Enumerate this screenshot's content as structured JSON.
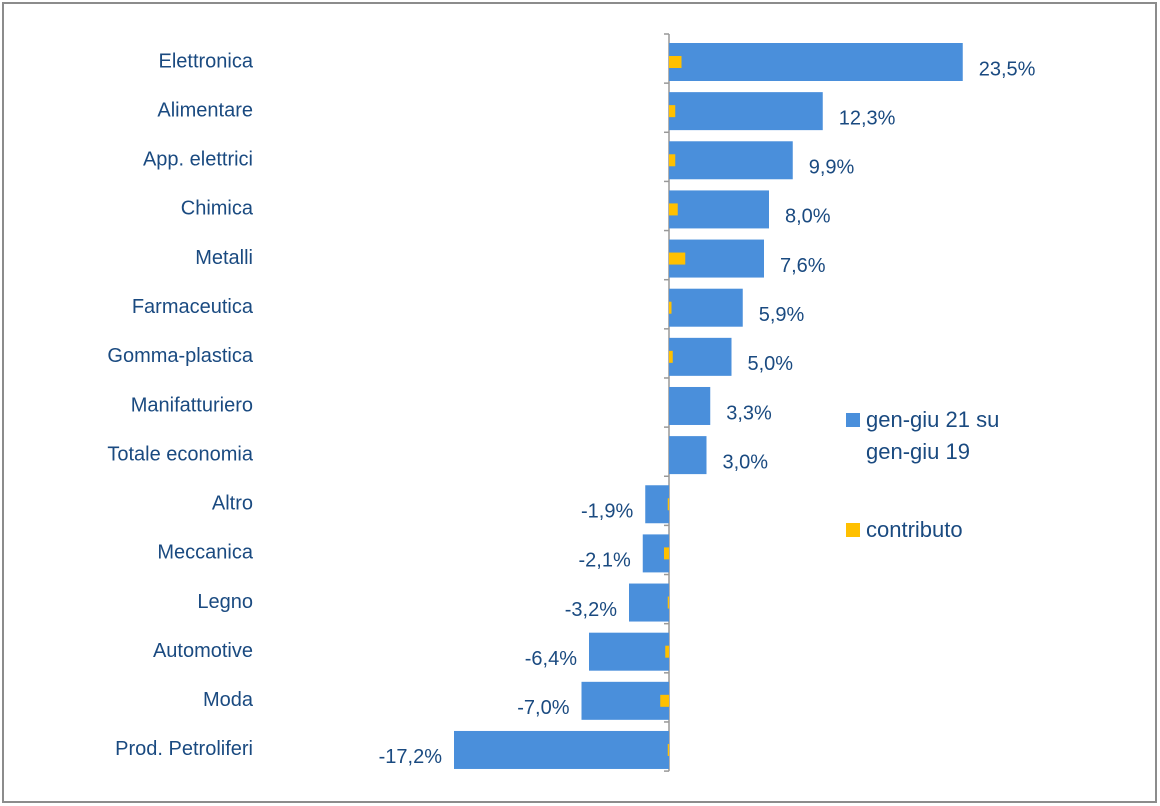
{
  "chart_data": {
    "type": "hbar",
    "categories": [
      "Elettronica",
      "Alimentare",
      "App. elettrici",
      "Chimica",
      "Metalli",
      "Farmaceutica",
      "Gomma-plastica",
      "Manifatturiero",
      "Totale economia",
      "Altro",
      "Meccanica",
      "Legno",
      "Automotive",
      "Moda",
      "Prod. Petroliferi"
    ],
    "series": [
      {
        "name": "gen-giu 21 su gen-giu 19",
        "color": "#4a8fdb",
        "values": [
          23.5,
          12.3,
          9.9,
          8.0,
          7.6,
          5.9,
          5.0,
          3.3,
          3.0,
          -1.9,
          -2.1,
          -3.2,
          -6.4,
          -7.0,
          -17.2
        ],
        "value_labels": [
          "23,5%",
          "12,3%",
          "9,9%",
          "8,0%",
          "7,6%",
          "5,9%",
          "5,0%",
          "3,3%",
          "3,0%",
          "-1,9%",
          "-2,1%",
          "-3,2%",
          "-6,4%",
          "-7,0%",
          "-17,2%"
        ]
      },
      {
        "name": "contributo",
        "color": "#ffc000",
        "values": [
          1.0,
          0.5,
          0.5,
          0.7,
          1.3,
          0.2,
          0.3,
          null,
          null,
          -0.1,
          -0.4,
          -0.1,
          -0.3,
          -0.7,
          -0.1
        ]
      }
    ],
    "xlim": [
      -20,
      25
    ],
    "legend": "right"
  }
}
